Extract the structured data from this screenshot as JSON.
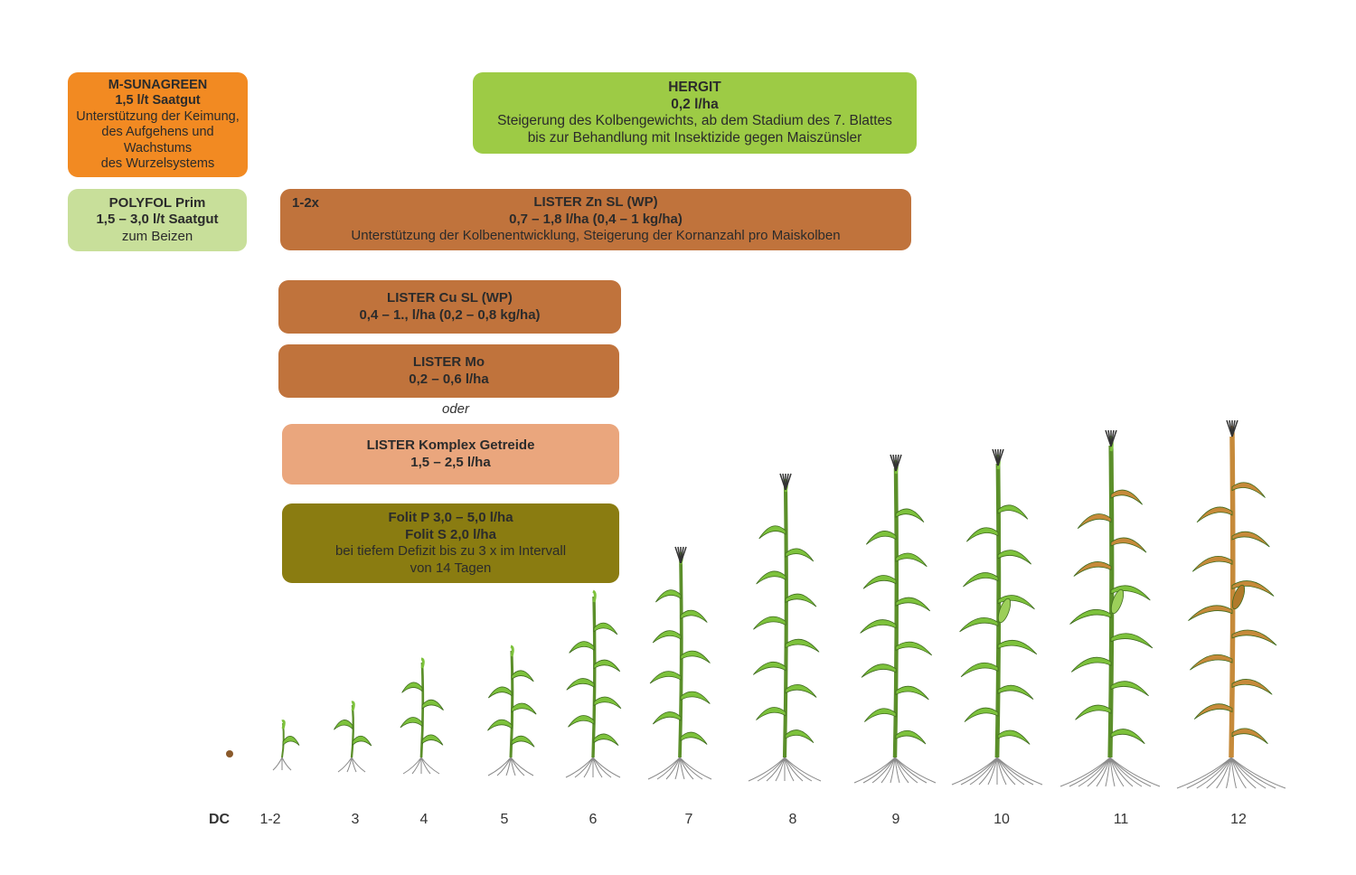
{
  "colors": {
    "orange": "#f28a22",
    "green": "#9dcb45",
    "lightgreen": "#c8df9a",
    "brown": "#c0733c",
    "salmon": "#eaa67d",
    "olive": "#8a7c11",
    "leaf_green": "#7dc23c",
    "leaf_dark": "#3f6b1e",
    "leaf_dry": "#c68a3a"
  },
  "boxes": {
    "m_sunagreen": {
      "title": "M-SUNAGREEN",
      "dose": "1,5 l/t Saatgut",
      "desc1": "Unterstützung der Keimung,",
      "desc2": "des Aufgehens und",
      "desc3": "Wachstums",
      "desc4": "des Wurzelsystems"
    },
    "hergit": {
      "title": "HERGIT",
      "dose": "0,2 l/ha",
      "desc1": "Steigerung des Kolbengewichts, ab dem Stadium des 7. Blattes",
      "desc2": "bis zur Behandlung mit Insektizide gegen Maiszünsler"
    },
    "polyfol": {
      "title": "POLYFOL Prim",
      "dose": "1,5 – 3,0 l/t Saatgut",
      "desc": "zum Beizen"
    },
    "lister_zn": {
      "tag": "1-2x",
      "title": "LISTER Zn SL (WP)",
      "dose": "0,7 – 1,8 l/ha (0,4 – 1 kg/ha)",
      "desc": "Unterstützung der Kolbenentwicklung, Steigerung der Kornanzahl pro Maiskolben"
    },
    "lister_cu": {
      "title": "LISTER Cu SL (WP)",
      "dose": "0,4 – 1., l/ha (0,2 – 0,8 kg/ha)"
    },
    "lister_mo": {
      "title": "LISTER Mo",
      "dose": "0,2 – 0,6 l/ha"
    },
    "oder": "oder",
    "lister_komplex": {
      "title": "LISTER Komplex Getreide",
      "dose": "1,5 – 2,5 l/ha"
    },
    "folit": {
      "line1": "Folit P 3,0 – 5,0 l/ha",
      "line2": "Folit S 2,0 l/ha",
      "line3": "bei tiefem Defizit bis zu 3 x im Intervall",
      "line4": "von 14 Tagen"
    }
  },
  "dc_scale": {
    "title": "DC",
    "stages": [
      "1-2",
      "3",
      "4",
      "5",
      "6",
      "7",
      "8",
      "9",
      "10",
      "11",
      "12"
    ]
  }
}
